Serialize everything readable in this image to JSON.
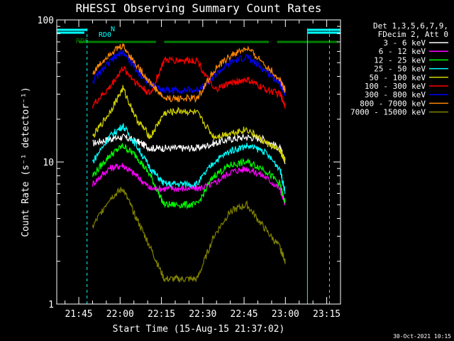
{
  "chart_data": {
    "type": "line",
    "title": "RHESSI Observing Summary Count Rates",
    "xlabel": "Start Time (15-Aug-15 21:37:02)",
    "ylabel": "Count Rate (s⁻¹ detector⁻¹)",
    "yscale": "log",
    "ylim": [
      1,
      100
    ],
    "xlim": [
      "21:37",
      "23:20"
    ],
    "x_ticks": [
      "21:45",
      "22:00",
      "22:15",
      "22:30",
      "22:45",
      "23:00",
      "23:15"
    ],
    "y_ticks": [
      "1",
      "10",
      "100"
    ],
    "legend_header": [
      "Det 1,3,5,6,7,9,",
      "FDecim 2, Att 0"
    ],
    "legend_position": "right",
    "timestamp": "30-Oct-2021 10:15",
    "flag_labels": {
      "n": "N",
      "rd0": "RD0",
      "rd6": "RD6"
    },
    "x": [
      "21:44",
      "21:50",
      "21:56",
      "22:01",
      "22:06",
      "22:11",
      "22:16",
      "22:22",
      "22:28",
      "22:34",
      "22:40",
      "22:46",
      "22:52",
      "22:58",
      "23:00"
    ],
    "series": [
      {
        "name": "3 - 6 keV",
        "color": "#ffffff",
        "values": [
          null,
          13.5,
          14.5,
          15,
          14,
          12.5,
          12.5,
          12.5,
          12.5,
          13.5,
          14.5,
          15,
          14.5,
          12.5,
          10
        ]
      },
      {
        "name": "6 - 12 keV",
        "color": "#ff00ff",
        "values": [
          null,
          7,
          9,
          9.5,
          8,
          6.5,
          6.5,
          6.5,
          6.5,
          7,
          8.5,
          9,
          8,
          6.5,
          5
        ]
      },
      {
        "name": "12 - 25 keV",
        "color": "#00ff00",
        "values": [
          null,
          8,
          11,
          13,
          11,
          8,
          5,
          5,
          5,
          8,
          9.5,
          10,
          9,
          7,
          5
        ]
      },
      {
        "name": "25 - 50 keV",
        "color": "#00ffff",
        "values": [
          null,
          10,
          15,
          18,
          13,
          9,
          7,
          7,
          7,
          10,
          12,
          13,
          12,
          9,
          6
        ]
      },
      {
        "name": "50 - 100 keV",
        "color": "#d4d400",
        "values": [
          null,
          15,
          22,
          33,
          20,
          15,
          22,
          23,
          22,
          15,
          16,
          17,
          14,
          12,
          10
        ]
      },
      {
        "name": "100 - 300 keV",
        "color": "#ff0000",
        "values": [
          null,
          25,
          33,
          46,
          36,
          30,
          52,
          52,
          52,
          32,
          36,
          38,
          33,
          30,
          25
        ]
      },
      {
        "name": "300 - 800 keV",
        "color": "#0000ff",
        "values": [
          null,
          37,
          50,
          60,
          44,
          35,
          32,
          32,
          32,
          40,
          50,
          55,
          45,
          36,
          30
        ]
      },
      {
        "name": "800 - 7000 keV",
        "color": "#ff8800",
        "values": [
          null,
          42,
          58,
          66,
          48,
          36,
          28,
          28,
          28,
          44,
          56,
          63,
          50,
          38,
          32
        ]
      },
      {
        "name": "7000 - 15000 keV",
        "color": "#808000",
        "values": [
          null,
          3.5,
          5.5,
          6.5,
          4,
          2.5,
          1.5,
          1.5,
          1.5,
          3,
          4.5,
          5,
          3.5,
          2.5,
          2
        ]
      }
    ],
    "flags": [
      {
        "label": "N",
        "color": "#00ffff",
        "segments": [
          [
            "21:37",
            "21:48"
          ],
          [
            "23:08",
            "23:20"
          ]
        ]
      },
      {
        "label": "RD0",
        "color": "#00ffff",
        "segments": [
          [
            "21:37",
            "21:47"
          ],
          [
            "23:08",
            "23:20"
          ]
        ]
      },
      {
        "label": "RD6",
        "color": "#008000",
        "segments": [
          [
            "21:45",
            "22:13"
          ],
          [
            "22:16",
            "22:33"
          ],
          [
            "22:33",
            "22:54"
          ],
          [
            "22:57",
            "23:19"
          ]
        ]
      }
    ]
  }
}
